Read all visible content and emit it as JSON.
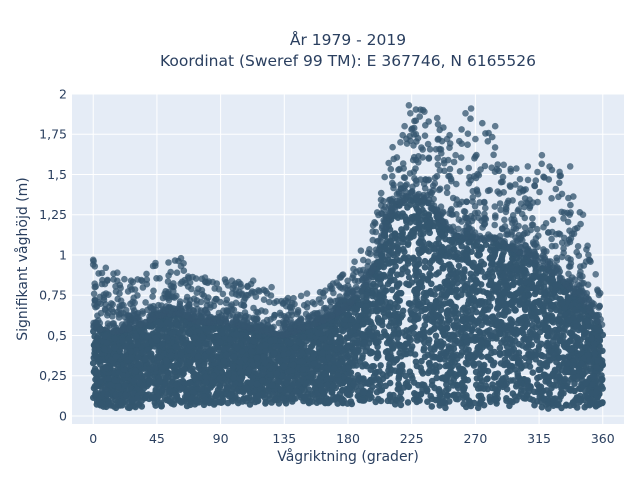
{
  "chart_data": {
    "type": "scatter",
    "title_line1": "År 1979 - 2019",
    "title_line2": "Koordinat (Sweref 99 TM): E 367746, N 6165526",
    "xlabel": "Vågriktning (grader)",
    "ylabel": "Signifikant våghöjd (m)",
    "xlim": [
      -15,
      375
    ],
    "ylim": [
      -0.05,
      2.0
    ],
    "x_ticks": [
      0,
      45,
      90,
      135,
      180,
      225,
      270,
      315,
      360
    ],
    "x_tick_labels": [
      "0",
      "45",
      "90",
      "135",
      "180",
      "225",
      "270",
      "315",
      "360"
    ],
    "y_ticks": [
      0,
      0.25,
      0.5,
      0.75,
      1,
      1.25,
      1.5,
      1.75,
      2
    ],
    "y_tick_labels": [
      "0",
      "0,25",
      "0,5",
      "0,75",
      "1",
      "1,25",
      "1,5",
      "1,75",
      "2"
    ],
    "grid": true,
    "plot_bgcolor": "#e5ecf6",
    "marker_color": "#34566f",
    "envelope": {
      "x": [
        0,
        15,
        30,
        45,
        60,
        75,
        90,
        105,
        120,
        135,
        150,
        165,
        180,
        195,
        210,
        225,
        240,
        255,
        270,
        285,
        300,
        315,
        330,
        345,
        360
      ],
      "dense_top": [
        0.55,
        0.52,
        0.55,
        0.62,
        0.64,
        0.58,
        0.58,
        0.56,
        0.52,
        0.5,
        0.55,
        0.6,
        0.68,
        0.85,
        1.25,
        1.38,
        1.28,
        1.12,
        1.1,
        1.1,
        1.02,
        0.95,
        0.85,
        0.72,
        0.55
      ],
      "max": [
        0.97,
        0.89,
        0.85,
        0.95,
        0.98,
        0.86,
        0.85,
        0.84,
        0.8,
        0.73,
        0.76,
        0.79,
        0.92,
        1.1,
        1.65,
        1.93,
        1.88,
        1.72,
        1.91,
        1.8,
        1.52,
        1.62,
        1.55,
        1.3,
        0.75
      ],
      "min": [
        0.06,
        0.05,
        0.05,
        0.06,
        0.06,
        0.06,
        0.07,
        0.07,
        0.07,
        0.07,
        0.07,
        0.07,
        0.07,
        0.07,
        0.07,
        0.06,
        0.05,
        0.05,
        0.05,
        0.05,
        0.05,
        0.05,
        0.04,
        0.05,
        0.06
      ]
    },
    "outliers": [
      {
        "x": 0,
        "y": 0.97
      },
      {
        "x": 0,
        "y": 0.94
      },
      {
        "x": 17,
        "y": 0.89
      },
      {
        "x": 44,
        "y": 0.95
      },
      {
        "x": 62,
        "y": 0.98
      },
      {
        "x": 62,
        "y": 0.93
      },
      {
        "x": 79,
        "y": 0.86
      },
      {
        "x": 98,
        "y": 0.84
      },
      {
        "x": 113,
        "y": 0.84
      },
      {
        "x": 126,
        "y": 0.8
      },
      {
        "x": 151,
        "y": 0.76
      },
      {
        "x": 217,
        "y": 1.7
      },
      {
        "x": 220,
        "y": 1.8
      },
      {
        "x": 223,
        "y": 1.93
      },
      {
        "x": 224,
        "y": 1.88
      },
      {
        "x": 228,
        "y": 1.75
      },
      {
        "x": 233,
        "y": 1.9
      },
      {
        "x": 234,
        "y": 1.89
      },
      {
        "x": 243,
        "y": 1.85
      },
      {
        "x": 250,
        "y": 1.72
      },
      {
        "x": 256,
        "y": 1.62
      },
      {
        "x": 263,
        "y": 1.88
      },
      {
        "x": 267,
        "y": 1.91
      },
      {
        "x": 270,
        "y": 1.72
      },
      {
        "x": 284,
        "y": 1.8
      },
      {
        "x": 290,
        "y": 1.56
      },
      {
        "x": 295,
        "y": 1.52
      },
      {
        "x": 307,
        "y": 1.55
      },
      {
        "x": 317,
        "y": 1.62
      },
      {
        "x": 337,
        "y": 1.55
      },
      {
        "x": 346,
        "y": 1.25
      },
      {
        "x": 355,
        "y": 0.88
      }
    ]
  }
}
